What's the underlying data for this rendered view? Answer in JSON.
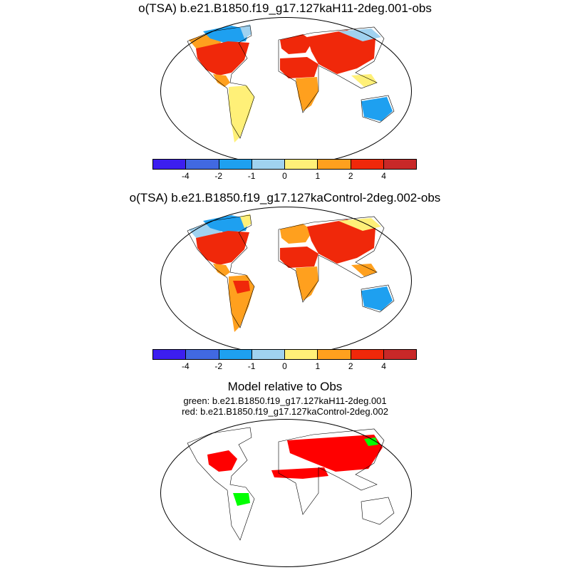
{
  "panels": [
    {
      "title": "o(TSA) b.e21.B1850.f19_g17.127kaH11-2deg.001-obs",
      "colorbar": {
        "colors": [
          "#3c1ef0",
          "#4169e1",
          "#1ea0f0",
          "#a0d2f0",
          "#fff078",
          "#ffa01e",
          "#f0280a",
          "#c82828"
        ],
        "tick_labels": [
          "-4",
          "-2",
          "-1",
          "0",
          "1",
          "2",
          "4"
        ]
      },
      "fields": [
        {
          "region": "alaska",
          "value": "positive warm",
          "color": "#ffa01e"
        },
        {
          "region": "canada-north",
          "value": "negative",
          "color": "#1ea0f0"
        },
        {
          "region": "north-america",
          "value": "strong positive",
          "color": "#f0280a"
        },
        {
          "region": "greenland-coast",
          "value": "mixed",
          "color": "#a0d2f0"
        },
        {
          "region": "central-america",
          "value": "positive",
          "color": "#ffa01e"
        },
        {
          "region": "south-america",
          "value": "mixed",
          "color": "#fff078"
        },
        {
          "region": "europe",
          "value": "strong positive",
          "color": "#f0280a"
        },
        {
          "region": "north-africa",
          "value": "strong positive",
          "color": "#f0280a"
        },
        {
          "region": "southern-africa",
          "value": "mixed",
          "color": "#ffa01e"
        },
        {
          "region": "asia",
          "value": "strong positive",
          "color": "#f0280a"
        },
        {
          "region": "siberia",
          "value": "mixed",
          "color": "#a0d2f0"
        },
        {
          "region": "southeast-asia",
          "value": "positive",
          "color": "#fff078"
        },
        {
          "region": "australia",
          "value": "negative",
          "color": "#1ea0f0"
        }
      ]
    },
    {
      "title": "o(TSA) b.e21.B1850.f19_g17.127kaControl-2deg.002-obs",
      "colorbar": {
        "colors": [
          "#3c1ef0",
          "#4169e1",
          "#1ea0f0",
          "#a0d2f0",
          "#fff078",
          "#ffa01e",
          "#f0280a",
          "#c82828"
        ],
        "tick_labels": [
          "-4",
          "-2",
          "-1",
          "0",
          "1",
          "2",
          "4"
        ]
      },
      "fields": [
        {
          "region": "alaska",
          "value": "mixed",
          "color": "#a0d2f0"
        },
        {
          "region": "canada-north",
          "value": "negative",
          "color": "#1ea0f0"
        },
        {
          "region": "north-america",
          "value": "strong positive",
          "color": "#f0280a"
        },
        {
          "region": "greenland-coast",
          "value": "mixed",
          "color": "#fff078"
        },
        {
          "region": "central-america",
          "value": "positive",
          "color": "#ffa01e"
        },
        {
          "region": "south-america",
          "value": "positive",
          "color": "#ffa01e"
        },
        {
          "region": "amazon",
          "value": "strong positive",
          "color": "#f0280a"
        },
        {
          "region": "europe",
          "value": "positive",
          "color": "#ffa01e"
        },
        {
          "region": "north-africa",
          "value": "strong positive",
          "color": "#f0280a"
        },
        {
          "region": "southern-africa",
          "value": "positive",
          "color": "#ffa01e"
        },
        {
          "region": "asia",
          "value": "strong positive",
          "color": "#f0280a"
        },
        {
          "region": "siberia",
          "value": "mixed",
          "color": "#fff078"
        },
        {
          "region": "southeast-asia",
          "value": "positive",
          "color": "#ffa01e"
        },
        {
          "region": "australia",
          "value": "negative",
          "color": "#1ea0f0"
        }
      ]
    },
    {
      "title": "Model relative to Obs",
      "subtitle_green": "green: b.e21.B1850.f19_g17.127kaH11-2deg.001",
      "subtitle_red": "red: b.e21.B1850.f19_g17.127kaControl-2deg.002",
      "fields": [
        {
          "region": "north-america-east",
          "value": "red",
          "color": "#ff0000"
        },
        {
          "region": "eurasia",
          "value": "red",
          "color": "#ff0000"
        },
        {
          "region": "sahel",
          "value": "red",
          "color": "#ff0000"
        },
        {
          "region": "amazon",
          "value": "green",
          "color": "#00ff00"
        },
        {
          "region": "siberia-east",
          "value": "green",
          "color": "#00ff00"
        }
      ]
    }
  ]
}
